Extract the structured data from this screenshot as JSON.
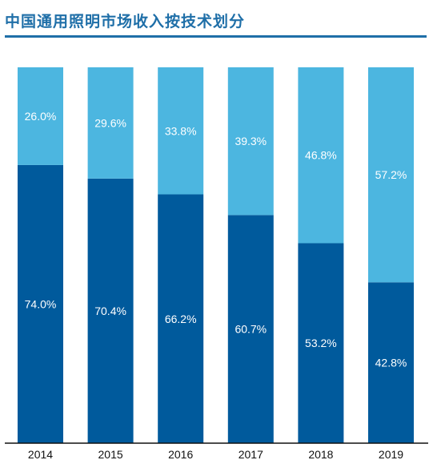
{
  "title": "中国通用照明市场收入按技术划分",
  "colors": {
    "title": "#1f6fa8",
    "bottom": "#005a9c",
    "top": "#4cb6e0",
    "axis": "#111111"
  },
  "chart_data": {
    "type": "bar",
    "stacked": true,
    "percent_stacked": true,
    "categories": [
      "2014",
      "2015",
      "2016",
      "2017",
      "2018",
      "2019"
    ],
    "series": [
      {
        "values": [
          74.0,
          70.4,
          66.2,
          60.7,
          53.2,
          42.8
        ],
        "labels": [
          "74.0%",
          "70.4%",
          "66.2%",
          "60.7%",
          "53.2%",
          "42.8%"
        ],
        "color": "#005a9c"
      },
      {
        "values": [
          26.0,
          29.6,
          33.8,
          39.3,
          46.8,
          57.2
        ],
        "labels": [
          "26.0%",
          "29.6%",
          "33.8%",
          "39.3%",
          "46.8%",
          "57.2%"
        ],
        "color": "#4cb6e0"
      }
    ],
    "ylim": [
      0,
      100
    ],
    "legend": "none",
    "grid": false
  }
}
